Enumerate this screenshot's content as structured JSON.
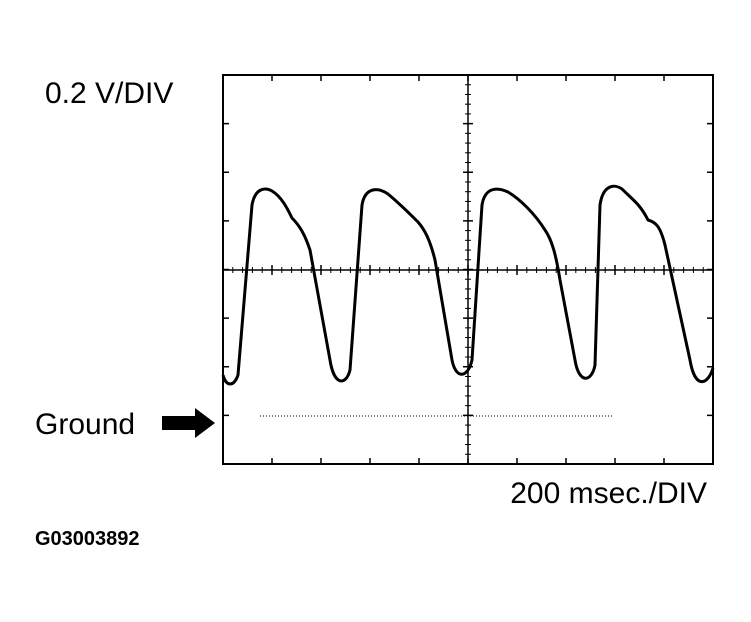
{
  "labels": {
    "volts_per_div": "0.2 V/DIV",
    "ground": "Ground",
    "time_per_div": "200 msec./DIV",
    "figure_id": "G03003892"
  }
}
